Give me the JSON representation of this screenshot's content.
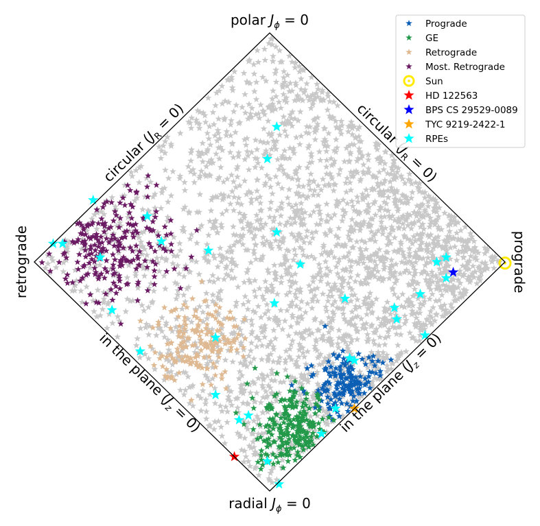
{
  "chart_data": {
    "type": "scatter",
    "title": "",
    "frame": "action-diamond",
    "corner_labels": {
      "top": "polar $J_\\phi=0$",
      "bottom": "radial $J_\\phi=0$",
      "left": "retrograde",
      "right": "prograde"
    },
    "corner_label_text": {
      "top_main": "polar ",
      "top_math": "J",
      "top_sub": "ϕ",
      "top_rest": " = 0",
      "bottom_main": "radial ",
      "bottom_math": "J",
      "bottom_sub": "ϕ",
      "bottom_rest": " = 0",
      "left": "retrograde",
      "right": "prograde"
    },
    "edge_labels": {
      "upper_left": {
        "main": "circular (",
        "math": "J",
        "sub": "R",
        "rest": " = 0)"
      },
      "upper_right": {
        "main": "circular (",
        "math": "J",
        "sub": "R",
        "rest": " = 0)"
      },
      "lower_left": {
        "main": "in the plane (",
        "math": "J",
        "sub": "z",
        "rest": " = 0)"
      },
      "lower_right": {
        "main": "in the plane (",
        "math": "J",
        "sub": "z",
        "rest": " = 0)"
      }
    },
    "axis_note": "x = (Jphi/Jtot), y = (Jz - JR)/Jtot; diamond spans x in [-1,1], y in [-1,1]",
    "xlim": [
      -1,
      1
    ],
    "ylim": [
      -1,
      1
    ],
    "grid": false,
    "legend_position": "top-right",
    "background_color": "#c8c8c8",
    "series": [
      {
        "name": "Prograde",
        "color": "#0b5fb5",
        "marker": "star",
        "cluster": {
          "center": [
            0.34,
            -0.55
          ],
          "spread": [
            0.09,
            0.07
          ],
          "count": 200
        }
      },
      {
        "name": "GE",
        "color": "#23994a",
        "marker": "star",
        "cluster": {
          "center": [
            0.11,
            -0.75
          ],
          "spread": [
            0.08,
            0.09
          ],
          "count": 260
        }
      },
      {
        "name": "Retrograde",
        "color": "#deb992",
        "marker": "star",
        "cluster": {
          "center": [
            -0.3,
            -0.33
          ],
          "spread": [
            0.1,
            0.09
          ],
          "count": 180
        }
      },
      {
        "name": "Most. Retrograde",
        "color": "#6a1b63",
        "marker": "star",
        "cluster": {
          "center": [
            -0.67,
            0.08
          ],
          "spread": [
            0.13,
            0.13
          ],
          "count": 260
        }
      }
    ],
    "points": [
      {
        "name": "Sun",
        "color": "#ffea00",
        "marker": "circle-dot",
        "x": 1.0,
        "y": -0.005
      },
      {
        "name": "HD 122563",
        "color": "#ff0000",
        "marker": "star",
        "x": -0.15,
        "y": -0.85
      },
      {
        "name": "BPS CS 29529-0089",
        "color": "#0000ff",
        "marker": "star",
        "x": 0.78,
        "y": -0.045
      },
      {
        "name": "TYC 9219-2422-1",
        "color": "#ffa500",
        "marker": "star",
        "x": 0.36,
        "y": -0.64
      }
    ],
    "rpes": {
      "name": "RPEs",
      "color": "#00ffff",
      "marker": "star",
      "x": [
        0.03,
        -0.01,
        0.03,
        0.13,
        0.02,
        -0.23,
        -0.55,
        -0.46,
        -0.72,
        -0.92,
        -0.88,
        -0.67,
        -0.75,
        -0.52,
        -0.26,
        -0.23,
        -0.09,
        -0.01,
        0.32,
        0.34,
        0.53,
        0.54,
        0.64,
        0.66,
        0.71,
        0.75,
        0.75,
        0.36,
        0.28,
        0.22,
        0.04,
        -0.13
      ],
      "y": [
        0.59,
        0.45,
        0.13,
        -0.01,
        -0.18,
        -0.33,
        -0.39,
        0.09,
        0.02,
        0.08,
        0.08,
        -0.21,
        0.27,
        0.2,
        0.05,
        -0.58,
        -0.67,
        -0.87,
        -0.16,
        -0.42,
        -0.2,
        -0.25,
        -0.14,
        -0.32,
        0.0,
        0.02,
        -0.07,
        -0.43,
        -0.64,
        -0.75,
        -0.97,
        -0.69
      ]
    },
    "legend": [
      {
        "label": "Prograde",
        "color": "#0b5fb5",
        "marker": "small-star"
      },
      {
        "label": "GE",
        "color": "#23994a",
        "marker": "small-star"
      },
      {
        "label": "Retrograde",
        "color": "#deb992",
        "marker": "small-star"
      },
      {
        "label": "Most. Retrograde",
        "color": "#6a1b63",
        "marker": "small-star"
      },
      {
        "label": "Sun",
        "color": "#ffea00",
        "marker": "circle-dot"
      },
      {
        "label": "HD 122563",
        "color": "#ff0000",
        "marker": "star"
      },
      {
        "label": "BPS CS 29529-0089",
        "color": "#0000ff",
        "marker": "star"
      },
      {
        "label": "TYC 9219-2422-1",
        "color": "#ffa500",
        "marker": "star"
      },
      {
        "label": "RPEs",
        "color": "#00ffff",
        "marker": "star"
      }
    ]
  }
}
